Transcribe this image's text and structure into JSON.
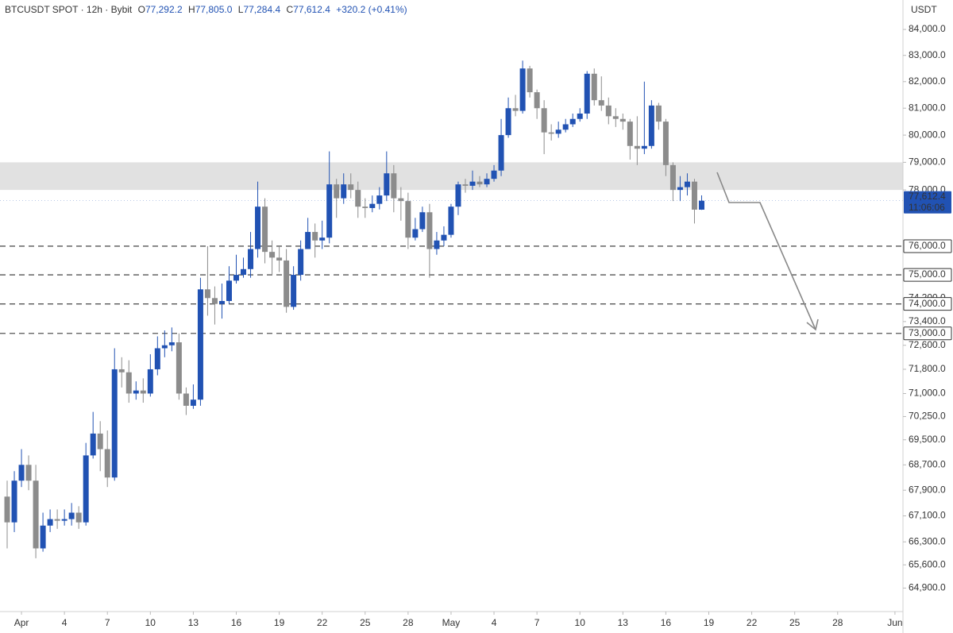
{
  "chart_data": {
    "type": "candlestick",
    "header": {
      "symbol": "BTCUSDT SPOT · 12h · Bybit",
      "ohlc": [
        {
          "key": "O",
          "value": "77,292.2"
        },
        {
          "key": "H",
          "value": "77,805.0"
        },
        {
          "key": "L",
          "value": "77,284.4"
        },
        {
          "key": "C",
          "value": "77,612.4"
        }
      ],
      "change": "+320.2 (+0.41%)"
    },
    "y_unit": "USDT",
    "log_scale": true,
    "grid": false,
    "up_color": "#2152b3",
    "down_color": "#8c8c8c",
    "x": [
      0,
      0.5,
      1,
      1.5,
      2,
      2.5,
      3,
      3.5,
      4,
      4.5,
      5,
      5.5,
      6,
      6.5,
      7,
      7.5,
      8,
      8.5,
      9,
      9.5,
      10,
      10.5,
      11,
      11.5,
      12,
      12.5,
      13,
      13.5,
      14,
      14.5,
      15,
      15.5,
      16,
      16.5,
      17,
      17.5,
      18,
      18.5,
      19,
      19.5,
      20,
      20.5,
      21,
      21.5,
      22,
      22.5,
      23,
      23.5,
      24,
      24.5,
      25,
      25.5,
      26,
      26.5,
      27,
      27.5,
      28,
      28.5,
      29,
      29.5,
      30,
      30.5,
      31,
      31.5,
      32,
      32.5,
      33,
      33.5,
      34,
      34.5,
      35,
      35.5,
      36,
      36.5,
      37,
      37.5,
      38,
      38.5,
      39,
      39.5,
      40,
      40.5,
      41,
      41.5,
      42,
      42.5,
      43,
      43.5,
      44,
      44.5,
      45,
      45.5,
      46,
      46.5,
      47,
      47.5,
      48,
      48.5
    ],
    "open": [
      67700,
      66900,
      68200,
      68700,
      68200,
      66100,
      66800,
      67000,
      66950,
      67000,
      67200,
      66900,
      69000,
      69700,
      69200,
      68300,
      71800,
      71700,
      71000,
      71100,
      71000,
      71800,
      72500,
      72600,
      72700,
      71000,
      70600,
      70800,
      74500,
      74200,
      74000,
      74100,
      74800,
      75000,
      75200,
      75900,
      77400,
      75800,
      75600,
      75500,
      73900,
      75000,
      75900,
      76500,
      76200,
      76300,
      78200,
      77700,
      78200,
      78000,
      77400,
      77350,
      77500,
      77800,
      78600,
      77700,
      77600,
      76300,
      76600,
      77200,
      75900,
      76200,
      76400,
      77400,
      78200,
      78150,
      78300,
      78200,
      78400,
      78700,
      80000,
      81000,
      80900,
      82500,
      81600,
      81000,
      80100,
      80050,
      80200,
      80400,
      80600,
      80800,
      82300,
      81300,
      81100,
      80700,
      80600,
      80500,
      79600,
      79500,
      79600,
      81100,
      80500,
      78900,
      78000,
      78100,
      78300,
      77292.2
    ],
    "high": [
      68200,
      68500,
      69200,
      69000,
      68700,
      67200,
      67300,
      67300,
      67300,
      67500,
      67400,
      69400,
      70400,
      70100,
      69800,
      72500,
      72200,
      72100,
      71400,
      71500,
      72300,
      72900,
      73100,
      73200,
      73000,
      71200,
      71300,
      74900,
      76000,
      74600,
      74700,
      75300,
      75700,
      75600,
      76500,
      78300,
      77700,
      76200,
      76000,
      75900,
      75300,
      76200,
      77000,
      76800,
      76900,
      79400,
      78400,
      78600,
      78600,
      78300,
      77700,
      77800,
      78100,
      79400,
      78900,
      78100,
      77900,
      77000,
      77400,
      77500,
      76500,
      76700,
      77500,
      78300,
      78400,
      78700,
      78500,
      78600,
      78900,
      80600,
      81400,
      81500,
      82800,
      82600,
      81700,
      81300,
      80400,
      80500,
      80600,
      80800,
      81000,
      82400,
      82500,
      82200,
      81400,
      81000,
      80800,
      80600,
      80700,
      82000,
      81300,
      81200,
      80600,
      79000,
      78500,
      78600,
      78400,
      77805
    ],
    "low": [
      66100,
      66600,
      68000,
      67900,
      65800,
      66000,
      66600,
      66700,
      66800,
      66800,
      66700,
      66800,
      68900,
      68500,
      68000,
      68200,
      71200,
      70700,
      70800,
      70700,
      70900,
      71600,
      72200,
      72400,
      70800,
      70300,
      70500,
      70600,
      73600,
      73300,
      73500,
      74000,
      74700,
      74900,
      74900,
      75600,
      75400,
      75000,
      75100,
      73700,
      73800,
      74800,
      75900,
      75600,
      75900,
      76100,
      77000,
      77500,
      77700,
      77000,
      77000,
      77200,
      77300,
      77600,
      77200,
      76900,
      75900,
      76200,
      76500,
      74900,
      75700,
      76000,
      76300,
      77100,
      77900,
      78000,
      78100,
      78100,
      78300,
      78500,
      79900,
      80700,
      80800,
      81400,
      80600,
      79300,
      79800,
      79900,
      80100,
      80300,
      80500,
      80600,
      81100,
      80900,
      80400,
      80300,
      80200,
      79100,
      78900,
      79300,
      79500,
      80200,
      78500,
      77600,
      77600,
      77800,
      76800,
      77284.4
    ],
    "close": [
      66900,
      68200,
      68700,
      68200,
      66100,
      66800,
      67000,
      66950,
      67000,
      67200,
      66900,
      69000,
      69700,
      69200,
      68300,
      71800,
      71700,
      71000,
      71100,
      71000,
      71800,
      72500,
      72600,
      72700,
      71000,
      70600,
      70800,
      74500,
      74200,
      74000,
      74100,
      74800,
      75000,
      75200,
      75900,
      77400,
      75800,
      75600,
      75500,
      73900,
      75000,
      75900,
      76500,
      76200,
      76300,
      78200,
      77700,
      78200,
      78000,
      77400,
      77350,
      77500,
      77800,
      78600,
      77700,
      77600,
      76300,
      76600,
      77200,
      75900,
      76200,
      76400,
      77400,
      78200,
      78150,
      78300,
      78200,
      78400,
      78700,
      80000,
      81000,
      80900,
      82500,
      81600,
      81000,
      80100,
      80050,
      80200,
      80400,
      80600,
      80800,
      82300,
      81300,
      81100,
      80700,
      80600,
      80500,
      79600,
      79500,
      79600,
      81100,
      80500,
      78900,
      78000,
      78100,
      78300,
      77292.2,
      77612.4
    ],
    "xlim": [
      -0.5,
      62.45
    ],
    "xticks": [
      {
        "value": 1,
        "label": "Apr"
      },
      4,
      7,
      10,
      13,
      16,
      19,
      22,
      25,
      28,
      {
        "value": 31,
        "label": "May"
      },
      {
        "value": 34,
        "label": "4"
      },
      {
        "value": 37,
        "label": "7"
      },
      {
        "value": 40,
        "label": "10"
      },
      {
        "value": 43,
        "label": "13"
      },
      {
        "value": 46,
        "label": "16"
      },
      {
        "value": 49,
        "label": "19"
      },
      {
        "value": 52,
        "label": "22"
      },
      {
        "value": 55,
        "label": "25"
      },
      {
        "value": 58,
        "label": "28"
      },
      {
        "value": 62,
        "label": "Jun"
      }
    ],
    "ylim": [
      64200,
      85150
    ],
    "yticks": [
      {
        "value": 84000,
        "label": "84,000.0"
      },
      {
        "value": 83000,
        "label": "83,000.0"
      },
      {
        "value": 82000,
        "label": "82,000.0"
      },
      {
        "value": 81000,
        "label": "81,000.0"
      },
      {
        "value": 80000,
        "label": "80,000.0"
      },
      {
        "value": 79000,
        "label": "79,000.0"
      },
      {
        "value": 78000,
        "label": "78,000.0"
      },
      {
        "value": 74200,
        "label": "74,200.0"
      },
      {
        "value": 73400,
        "label": "73,400.0"
      },
      {
        "value": 72600,
        "label": "72,600.0"
      },
      {
        "value": 71800,
        "label": "71,800.0"
      },
      {
        "value": 71000,
        "label": "71,000.0"
      },
      {
        "value": 70250,
        "label": "70,250.0"
      },
      {
        "value": 69500,
        "label": "69,500.0"
      },
      {
        "value": 68700,
        "label": "68,700.0"
      },
      {
        "value": 67900,
        "label": "67,900.0"
      },
      {
        "value": 67100,
        "label": "67,100.0"
      },
      {
        "value": 66300,
        "label": "66,300.0"
      },
      {
        "value": 65600,
        "label": "65,600.0"
      },
      {
        "value": 64900,
        "label": "64,900.0"
      }
    ],
    "zone": [
      78000,
      79000
    ],
    "levels": [
      {
        "value": 76000,
        "label": "76,000.0"
      },
      {
        "value": 75000,
        "label": "75,000.0"
      },
      {
        "value": 74000,
        "label": "74,000.0"
      },
      {
        "value": 73000,
        "label": "73,000.0"
      }
    ],
    "last_price": {
      "value": 77612.4,
      "label": "77,612.4",
      "countdown": "11:06:06"
    }
  }
}
